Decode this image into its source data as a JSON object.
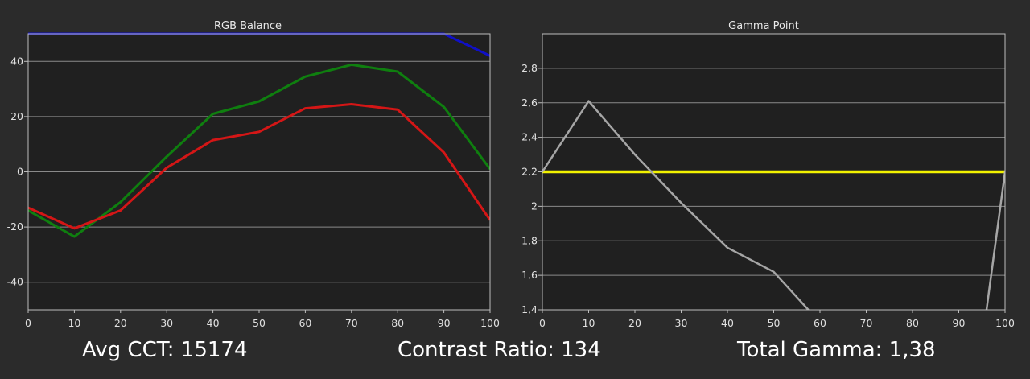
{
  "chart_data": [
    {
      "type": "line",
      "title": "RGB Balance",
      "x": [
        0,
        10,
        20,
        30,
        40,
        50,
        60,
        70,
        80,
        90,
        100
      ],
      "xlim": [
        0,
        100
      ],
      "ylim": [
        -50,
        50
      ],
      "yticks": [
        -40,
        -20,
        0,
        20,
        40
      ],
      "grid": true,
      "series": [
        {
          "color": "#1010c8",
          "values": [
            50,
            50,
            50,
            50,
            50,
            50,
            50,
            50,
            50,
            50,
            42
          ]
        },
        {
          "color": "#0f7f0f",
          "values": [
            -14,
            -23.5,
            -11,
            5.5,
            21,
            25.5,
            34.5,
            38.8,
            36.3,
            23.5,
            1
          ]
        },
        {
          "color": "#d41616",
          "values": [
            -13,
            -20.5,
            -14,
            1.5,
            11.5,
            14.5,
            23,
            24.5,
            22.5,
            7,
            -17.5
          ]
        }
      ]
    },
    {
      "type": "line",
      "title": "Gamma Point",
      "x": [
        0,
        10,
        20,
        30,
        40,
        50,
        60,
        70,
        80,
        90,
        100
      ],
      "xlim": [
        0,
        100
      ],
      "ylim": [
        1.4,
        3.0
      ],
      "yticks": [
        1.4,
        1.6,
        1.8,
        2.0,
        2.2,
        2.4,
        2.6,
        2.8
      ],
      "ytick_labels": [
        "1,4",
        "1,6",
        "1,8",
        "2",
        "2,2",
        "2,4",
        "2,6",
        "2,8"
      ],
      "grid": true,
      "reference_line": {
        "value": 2.2,
        "color": "#f2f200"
      },
      "series": [
        {
          "color": "#a6a6a6",
          "x": [
            0,
            10,
            20,
            30,
            40,
            50,
            57.5
          ],
          "values": [
            2.2,
            2.61,
            2.3,
            2.02,
            1.76,
            1.62,
            1.4
          ]
        },
        {
          "color": "#a6a6a6",
          "x": [
            96,
            100
          ],
          "values": [
            1.4,
            2.2
          ]
        }
      ]
    }
  ],
  "stats": {
    "avg_cct": "Avg CCT: 15174",
    "contrast_ratio": "Contrast Ratio: 134",
    "total_gamma": "Total Gamma: 1,38"
  }
}
